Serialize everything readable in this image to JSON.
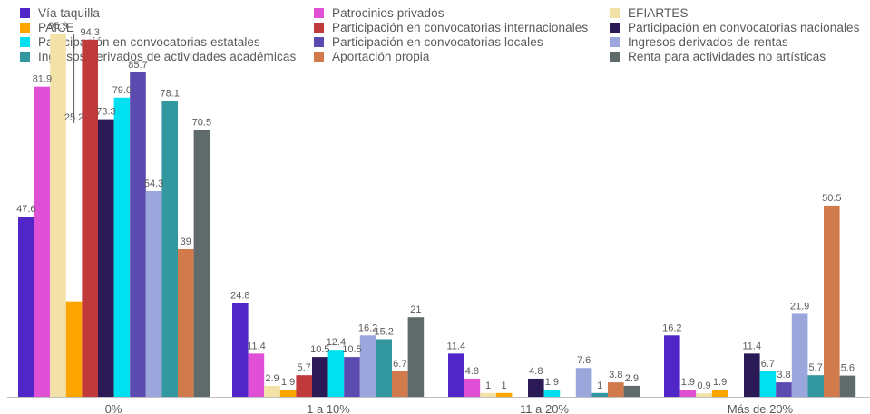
{
  "chart_data": {
    "type": "bar",
    "categories": [
      "0%",
      "1 a 10%",
      "11 a 20%",
      "Más de 20%"
    ],
    "series": [
      {
        "name": "Vía taquilla",
        "color": "#5126c9",
        "values": [
          47.6,
          24.8,
          11.4,
          16.2
        ]
      },
      {
        "name": "Patrocinios privados",
        "color": "#e050d6",
        "values": [
          81.9,
          11.4,
          4.8,
          1.9
        ]
      },
      {
        "name": "EFIARTES",
        "color": "#f3e2a8",
        "values": [
          95.9,
          2.9,
          1,
          0.9
        ]
      },
      {
        "name": "PAICE",
        "color": "#ffa500",
        "values": [
          25.2,
          1.9,
          1,
          1.9
        ]
      },
      {
        "name": "Participación en convocatorias internacionales",
        "color": "#c0393b",
        "values": [
          94.3,
          5.7,
          0,
          0
        ]
      },
      {
        "name": "Participación en convocatorias nacionales",
        "color": "#2a1a55",
        "values": [
          73.3,
          10.5,
          4.8,
          11.4
        ]
      },
      {
        "name": "Participación en convocatorias estatales",
        "color": "#00e0f0",
        "values": [
          79.0,
          12.4,
          1.9,
          6.7
        ]
      },
      {
        "name": "Participación en convocatorias locales",
        "color": "#5b4bb0",
        "values": [
          85.7,
          10.5,
          0,
          3.8
        ]
      },
      {
        "name": "Ingresos derivados de rentas",
        "color": "#9aa6dc",
        "values": [
          54.3,
          16.2,
          7.6,
          21.9
        ]
      },
      {
        "name": "Ingresos derivados de actividades académicas",
        "color": "#33979f",
        "values": [
          78.1,
          15.2,
          1,
          5.7
        ]
      },
      {
        "name": "Aportación propia",
        "color": "#d17a4c",
        "values": [
          39,
          6.7,
          3.8,
          50.5
        ]
      },
      {
        "name": "Renta para actividades no artísticas",
        "color": "#5f6b6a",
        "values": [
          70.5,
          21,
          2.9,
          5.6
        ]
      }
    ],
    "data_labels": [
      [
        "47.6",
        "24.8",
        "11.4",
        "16.2"
      ],
      [
        "81.9",
        "11.4",
        "4.8",
        "1.9"
      ],
      [
        "95.9",
        "2.9",
        "1",
        "0.9"
      ],
      [
        "25.2",
        "1.9",
        "1",
        "1.9"
      ],
      [
        "94.3",
        "5.7",
        "",
        ""
      ],
      [
        "73.3",
        "10.5",
        "4.8",
        "11.4"
      ],
      [
        "79.0",
        "12.4",
        "1.9",
        "6.7"
      ],
      [
        "85.7",
        "10.5",
        "",
        "3.8"
      ],
      [
        "54.3",
        "16.2",
        "7.6",
        "21.9"
      ],
      [
        "78.1",
        "15.2",
        "1",
        "5.7"
      ],
      [
        "39",
        "6.7",
        "3.8",
        "50.5"
      ],
      [
        "70.5",
        "21",
        "2.9",
        "5.6"
      ]
    ],
    "ylim": [
      0,
      100
    ],
    "legend_position": "top",
    "grid": false
  }
}
